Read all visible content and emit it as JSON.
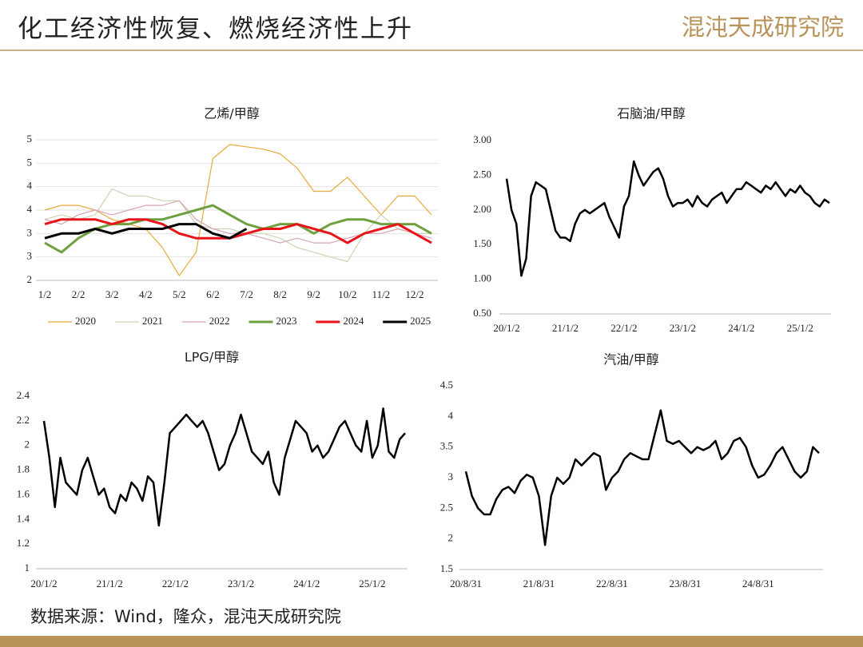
{
  "header": {
    "title": "化工经济性恢复、燃烧经济性上升",
    "logo": "混沌天成研究院"
  },
  "source": "数据来源：Wind，隆众，混沌天成研究院",
  "chart_data": [
    {
      "type": "line",
      "title": "乙烯/甲醇",
      "grid": true,
      "legend": "bottom",
      "categories": [
        "1/2",
        null,
        "2/2",
        null,
        "3/2",
        null,
        "4/2",
        null,
        "5/2",
        null,
        "6/2",
        null,
        "7/2",
        null,
        "8/2",
        null,
        "9/2",
        null,
        "10/2",
        null,
        "11/2",
        null,
        "12/2",
        null
      ],
      "ylim": [
        2,
        5
      ],
      "yticks": [
        2,
        {
          "value": 2.5,
          "label": "3"
        },
        3,
        {
          "value": 3.5,
          "label": "4"
        },
        4,
        {
          "value": 4.5,
          "label": "5"
        },
        5
      ],
      "series": [
        {
          "name": "2020",
          "color": "#E8A93A",
          "values": [
            3.5,
            3.6,
            3.6,
            3.5,
            3.3,
            3.2,
            3.1,
            2.7,
            2.1,
            2.6,
            4.6,
            4.9,
            4.85,
            4.8,
            4.7,
            4.4,
            3.9,
            3.9,
            4.2,
            3.8,
            3.4,
            3.8,
            3.8,
            3.4
          ]
        },
        {
          "name": "2021",
          "color": "#C9D5B2",
          "values": [
            3.3,
            3.4,
            3.3,
            3.4,
            3.95,
            3.8,
            3.8,
            3.7,
            3.7,
            3.2,
            3.1,
            3.1,
            3.0,
            3.0,
            2.9,
            2.7,
            2.6,
            2.5,
            2.4,
            3.0,
            3.4,
            3.1,
            3.0,
            3.0
          ]
        },
        {
          "name": "2022",
          "color": "#D9A3B4",
          "values": [
            3.3,
            3.2,
            3.4,
            3.5,
            3.4,
            3.5,
            3.6,
            3.6,
            3.7,
            3.3,
            3.1,
            3.0,
            3.0,
            2.9,
            2.8,
            2.9,
            2.8,
            2.8,
            2.9,
            3.0,
            3.0,
            3.1,
            3.0,
            2.9
          ]
        },
        {
          "name": "2023",
          "color": "#6FA040",
          "values": [
            2.8,
            2.6,
            2.9,
            3.1,
            3.2,
            3.2,
            3.3,
            3.3,
            3.4,
            3.5,
            3.6,
            3.4,
            3.2,
            3.1,
            3.2,
            3.2,
            3.0,
            3.2,
            3.3,
            3.3,
            3.2,
            3.2,
            3.2,
            3.0
          ]
        },
        {
          "name": "2024",
          "color": "#E8141A",
          "values": [
            3.2,
            3.3,
            3.3,
            3.3,
            3.2,
            3.3,
            3.3,
            3.2,
            3.0,
            2.9,
            2.9,
            2.9,
            3.0,
            3.1,
            3.1,
            3.2,
            3.1,
            3.0,
            2.8,
            3.0,
            3.1,
            3.2,
            3.0,
            2.8
          ]
        },
        {
          "name": "2025",
          "color": "#000000",
          "values": [
            2.9,
            3.0,
            3.0,
            3.1,
            3.0,
            3.1,
            3.1,
            3.1,
            3.2,
            3.2,
            3.0,
            2.9,
            3.1,
            null,
            null,
            null,
            null,
            null,
            null,
            null,
            null,
            null,
            null,
            null
          ]
        }
      ]
    },
    {
      "type": "line",
      "title": "石脑油/甲醇",
      "grid": false,
      "categories": [
        "20/1/2",
        null,
        null,
        null,
        null,
        null,
        null,
        null,
        null,
        null,
        null,
        null,
        "21/1/2",
        null,
        null,
        null,
        null,
        null,
        null,
        null,
        null,
        null,
        null,
        null,
        "22/1/2",
        null,
        null,
        null,
        null,
        null,
        null,
        null,
        null,
        null,
        null,
        null,
        "23/1/2",
        null,
        null,
        null,
        null,
        null,
        null,
        null,
        null,
        null,
        null,
        null,
        "24/1/2",
        null,
        null,
        null,
        null,
        null,
        null,
        null,
        null,
        null,
        null,
        null,
        "25/1/2",
        null,
        null,
        null,
        null,
        null,
        null
      ],
      "ylim": [
        0.5,
        3
      ],
      "yticks": [
        {
          "value": 0.5,
          "label": "0.50"
        },
        {
          "value": 1,
          "label": "1.00"
        },
        {
          "value": 1.5,
          "label": "1.50"
        },
        {
          "value": 2,
          "label": "2.00"
        },
        {
          "value": 2.5,
          "label": "2.50"
        },
        {
          "value": 3,
          "label": "3.00"
        }
      ],
      "series": [
        {
          "name": "石脑油/甲醇",
          "color": "#000000",
          "values": [
            2.45,
            2.0,
            1.8,
            1.05,
            1.3,
            2.2,
            2.4,
            2.35,
            2.3,
            2.0,
            1.7,
            1.6,
            1.6,
            1.55,
            1.8,
            1.95,
            2.0,
            1.95,
            2.0,
            2.05,
            2.1,
            1.9,
            1.75,
            1.6,
            2.05,
            2.2,
            2.7,
            2.5,
            2.35,
            2.45,
            2.55,
            2.6,
            2.45,
            2.2,
            2.05,
            2.1,
            2.1,
            2.15,
            2.05,
            2.2,
            2.1,
            2.05,
            2.15,
            2.2,
            2.25,
            2.1,
            2.2,
            2.3,
            2.3,
            2.4,
            2.35,
            2.3,
            2.25,
            2.35,
            2.3,
            2.4,
            2.3,
            2.2,
            2.3,
            2.25,
            2.35,
            2.25,
            2.2,
            2.1,
            2.05,
            2.15,
            2.1
          ]
        }
      ]
    },
    {
      "type": "line",
      "title": "LPG/甲醇",
      "grid": false,
      "categories": [
        "20/1/2",
        null,
        null,
        null,
        null,
        null,
        null,
        null,
        null,
        null,
        null,
        null,
        "21/1/2",
        null,
        null,
        null,
        null,
        null,
        null,
        null,
        null,
        null,
        null,
        null,
        "22/1/2",
        null,
        null,
        null,
        null,
        null,
        null,
        null,
        null,
        null,
        null,
        null,
        "23/1/2",
        null,
        null,
        null,
        null,
        null,
        null,
        null,
        null,
        null,
        null,
        null,
        "24/1/2",
        null,
        null,
        null,
        null,
        null,
        null,
        null,
        null,
        null,
        null,
        null,
        "25/1/2",
        null,
        null,
        null,
        null,
        null,
        null
      ],
      "ylim": [
        1,
        2.4
      ],
      "yticks": [
        1,
        1.2,
        1.4,
        1.6,
        1.8,
        2,
        2.2,
        2.4
      ],
      "series": [
        {
          "name": "LPG/甲醇",
          "color": "#000000",
          "values": [
            2.2,
            1.9,
            1.5,
            1.9,
            1.7,
            1.65,
            1.6,
            1.8,
            1.9,
            1.75,
            1.6,
            1.65,
            1.5,
            1.45,
            1.6,
            1.55,
            1.7,
            1.65,
            1.55,
            1.75,
            1.7,
            1.35,
            1.7,
            2.1,
            2.15,
            2.2,
            2.25,
            2.2,
            2.15,
            2.2,
            2.1,
            1.95,
            1.8,
            1.85,
            2.0,
            2.1,
            2.25,
            2.1,
            1.95,
            1.9,
            1.85,
            1.95,
            1.7,
            1.6,
            1.9,
            2.05,
            2.2,
            2.15,
            2.1,
            1.95,
            2.0,
            1.9,
            1.95,
            2.05,
            2.15,
            2.2,
            2.1,
            2.0,
            1.95,
            2.2,
            1.9,
            2.0,
            2.3,
            1.95,
            1.9,
            2.05,
            2.1
          ]
        }
      ]
    },
    {
      "type": "line",
      "title": "汽油/甲醇",
      "grid": false,
      "categories": [
        "20/8/31",
        null,
        null,
        null,
        null,
        null,
        null,
        null,
        null,
        null,
        null,
        null,
        "21/8/31",
        null,
        null,
        null,
        null,
        null,
        null,
        null,
        null,
        null,
        null,
        null,
        "22/8/31",
        null,
        null,
        null,
        null,
        null,
        null,
        null,
        null,
        null,
        null,
        null,
        "23/8/31",
        null,
        null,
        null,
        null,
        null,
        null,
        null,
        null,
        null,
        null,
        null,
        "24/8/31",
        null,
        null,
        null,
        null,
        null,
        null,
        null,
        null,
        null,
        null
      ],
      "ylim": [
        1.5,
        4.5
      ],
      "yticks": [
        1.5,
        2,
        2.5,
        3,
        3.5,
        4,
        4.5
      ],
      "series": [
        {
          "name": "汽油/甲醇",
          "color": "#000000",
          "values": [
            3.1,
            2.7,
            2.5,
            2.4,
            2.4,
            2.65,
            2.8,
            2.85,
            2.75,
            2.95,
            3.05,
            3.0,
            2.7,
            1.9,
            2.7,
            3.0,
            2.9,
            3.0,
            3.3,
            3.2,
            3.3,
            3.4,
            3.35,
            2.8,
            3.0,
            3.1,
            3.3,
            3.4,
            3.35,
            3.3,
            3.3,
            3.7,
            4.1,
            3.6,
            3.55,
            3.6,
            3.5,
            3.4,
            3.5,
            3.45,
            3.5,
            3.6,
            3.3,
            3.4,
            3.6,
            3.65,
            3.5,
            3.2,
            3.0,
            3.05,
            3.2,
            3.4,
            3.5,
            3.3,
            3.1,
            3.0,
            3.1,
            3.5,
            3.4
          ]
        }
      ]
    }
  ]
}
